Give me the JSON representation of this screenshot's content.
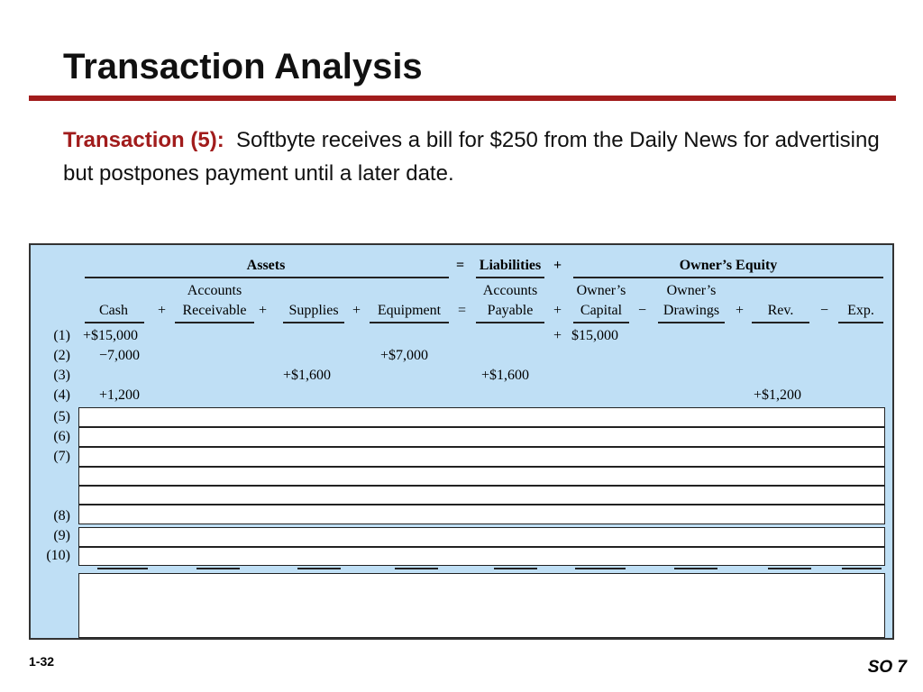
{
  "slide": {
    "title": "Transaction Analysis",
    "transaction_label": "Transaction (5):",
    "description": "Softbyte receives a bill for $250 from the Daily News for advertising but postpones payment until a later date.",
    "page_number": "1-32",
    "so_label": "SO 7"
  },
  "equation": {
    "assets_header": "Assets",
    "equals": "=",
    "liabilities_header": "Liabilities",
    "plus": "+",
    "equity_header": "Owner’s Equity",
    "columns": {
      "cash": "Cash",
      "ar_top": "Accounts",
      "ar_bottom": "Receivable",
      "supplies": "Supplies",
      "equipment": "Equipment",
      "ap_top": "Accounts",
      "ap_bottom": "Payable",
      "capital_top": "Owner’s",
      "capital_bottom": "Capital",
      "drawings_top": "Owner’s",
      "drawings_bottom": "Drawings",
      "rev": "Rev.",
      "exp": "Exp."
    },
    "operators": {
      "plus": "+",
      "equals": "=",
      "minus": "−"
    },
    "row_labels": [
      "(1)",
      "(2)",
      "(3)",
      "(4)",
      "(5)",
      "(6)",
      "(7)",
      "(8)",
      "(9)",
      "(10)"
    ],
    "entries": {
      "r1_cash": "+$15,000",
      "r1_plus": "+",
      "r1_capital": "$15,000",
      "r2_cash": "−7,000",
      "r2_equipment": "+$7,000",
      "r3_supplies": "+$1,600",
      "r3_ap": "+$1,600",
      "r4_cash": "+1,200",
      "r4_rev": "+$1,200"
    }
  }
}
